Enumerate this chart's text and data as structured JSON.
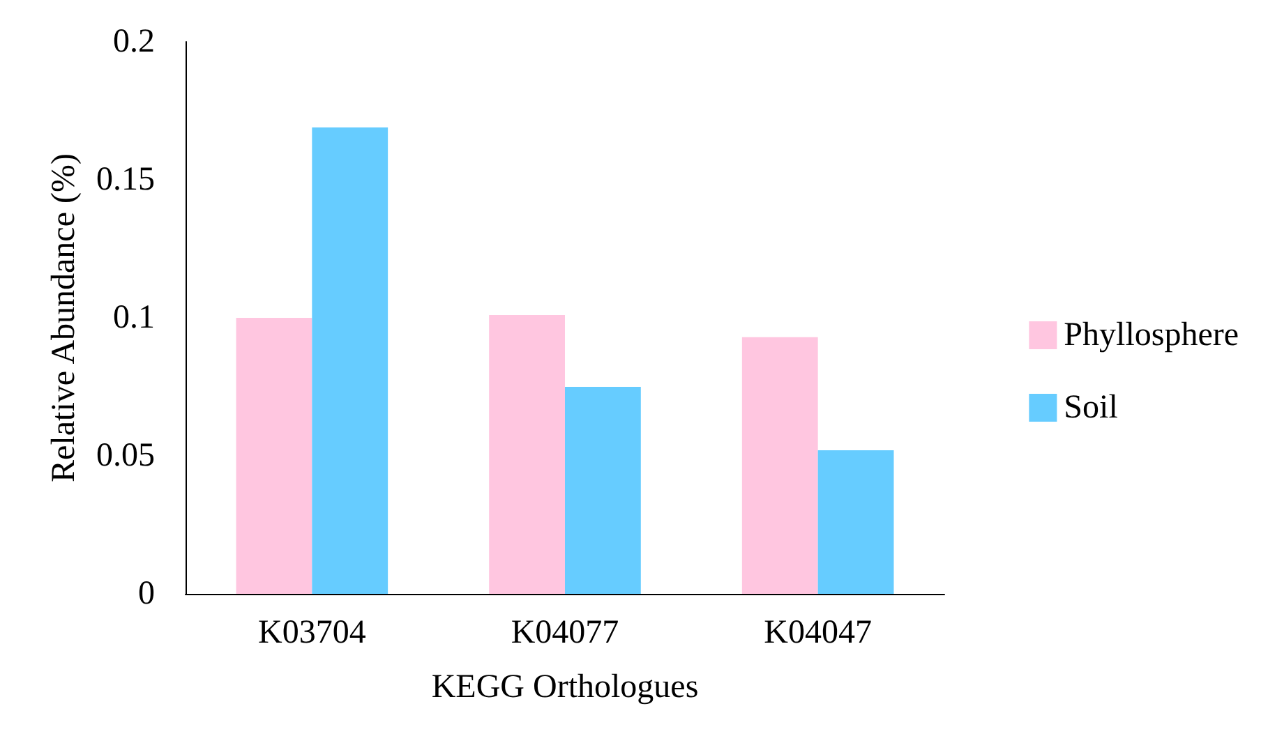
{
  "chart_data": {
    "type": "bar",
    "xlabel": "KEGG Orthologues",
    "ylabel": "Relative Abundance (%)",
    "categories": [
      "K03704",
      "K04077",
      "K04047"
    ],
    "series": [
      {
        "name": "Phyllosphere",
        "color": "#ffc6e0",
        "values": [
          0.1,
          0.101,
          0.093
        ]
      },
      {
        "name": "Soil",
        "color": "#66ccff",
        "values": [
          0.169,
          0.075,
          0.052
        ]
      }
    ],
    "ylim": [
      0,
      0.2
    ],
    "yticks": [
      0,
      0.05,
      0.1,
      0.15,
      0.2
    ],
    "grid": false,
    "legend": "right"
  }
}
